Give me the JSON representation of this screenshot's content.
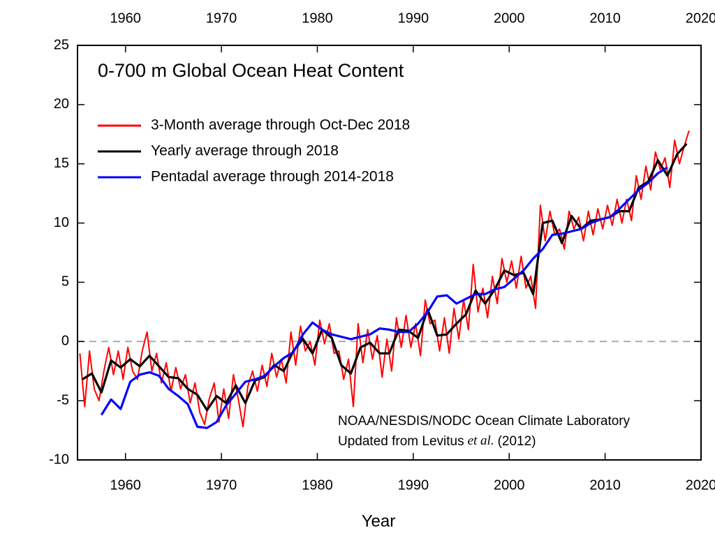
{
  "chart_data": {
    "type": "line",
    "title": "0-700 m Global Ocean Heat Content",
    "x_label": "Year",
    "annotation": "NOAA/NESDIS/NODC Ocean Climate Laboratory",
    "credit": [
      "Updated from Levitus",
      "et al.",
      "(2012)"
    ],
    "xlim": [
      1955,
      2020
    ],
    "xticks": [
      1960,
      1970,
      1980,
      1990,
      2000,
      2010,
      2020
    ],
    "ylim": [
      -10,
      25
    ],
    "yticks": [
      -10,
      -5,
      0,
      5,
      10,
      15,
      20,
      25
    ],
    "reference_line": 0,
    "legend": "upper left",
    "series": [
      {
        "name": "3-Month average through Oct-Dec 2018",
        "color": "#ff0000",
        "x": [
          1955.25,
          1955.75,
          1956.25,
          1956.75,
          1957.25,
          1957.75,
          1958.25,
          1958.75,
          1959.25,
          1959.75,
          1960.25,
          1960.75,
          1961.25,
          1961.75,
          1962.25,
          1962.75,
          1963.25,
          1963.75,
          1964.25,
          1964.75,
          1965.25,
          1965.75,
          1966.25,
          1966.75,
          1967.25,
          1967.75,
          1968.25,
          1968.75,
          1969.25,
          1969.75,
          1970.25,
          1970.75,
          1971.25,
          1971.75,
          1972.25,
          1972.75,
          1973.25,
          1973.75,
          1974.25,
          1974.75,
          1975.25,
          1975.75,
          1976.25,
          1976.75,
          1977.25,
          1977.75,
          1978.25,
          1978.75,
          1979.25,
          1979.75,
          1980.25,
          1980.75,
          1981.25,
          1981.75,
          1982.25,
          1982.75,
          1983.25,
          1983.75,
          1984.25,
          1984.75,
          1985.25,
          1985.75,
          1986.25,
          1986.75,
          1987.25,
          1987.75,
          1988.25,
          1988.75,
          1989.25,
          1989.75,
          1990.25,
          1990.75,
          1991.25,
          1991.75,
          1992.25,
          1992.75,
          1993.25,
          1993.75,
          1994.25,
          1994.75,
          1995.25,
          1995.75,
          1996.25,
          1996.75,
          1997.25,
          1997.75,
          1998.25,
          1998.75,
          1999.25,
          1999.75,
          2000.25,
          2000.75,
          2001.25,
          2001.75,
          2002.25,
          2002.75,
          2003.25,
          2003.75,
          2004.25,
          2004.75,
          2005.25,
          2005.75,
          2006.25,
          2006.75,
          2007.25,
          2007.75,
          2008.25,
          2008.75,
          2009.25,
          2009.75,
          2010.25,
          2010.75,
          2011.25,
          2011.75,
          2012.25,
          2012.75,
          2013.25,
          2013.75,
          2014.25,
          2014.75,
          2015.25,
          2015.75,
          2016.25,
          2016.75,
          2017.25,
          2017.75,
          2018.25,
          2018.75
        ],
        "values": [
          -1.0,
          -5.5,
          -0.8,
          -4.0,
          -5.0,
          -2.5,
          -0.5,
          -2.8,
          -0.8,
          -3.2,
          -0.5,
          -2.5,
          -3.2,
          -0.8,
          0.8,
          -2.5,
          -1.0,
          -3.5,
          -1.8,
          -4.2,
          -2.2,
          -4.0,
          -2.8,
          -5.2,
          -3.5,
          -6.0,
          -7.0,
          -4.8,
          -3.5,
          -6.8,
          -4.0,
          -6.5,
          -2.8,
          -4.8,
          -7.2,
          -3.8,
          -2.5,
          -4.2,
          -2.0,
          -3.8,
          -1.0,
          -3.0,
          -1.5,
          -3.5,
          0.8,
          -2.0,
          1.3,
          -0.8,
          0.0,
          -2.0,
          1.8,
          -0.2,
          1.5,
          -1.0,
          -0.8,
          -3.2,
          -1.5,
          -5.5,
          1.5,
          -1.8,
          1.0,
          -1.5,
          0.5,
          -3.0,
          0.2,
          -2.5,
          2.0,
          -0.5,
          2.2,
          -0.5,
          1.5,
          -1.2,
          3.5,
          1.5,
          1.8,
          -0.8,
          2.0,
          -1.0,
          2.8,
          0.2,
          3.5,
          1.0,
          6.5,
          2.5,
          4.5,
          2.0,
          5.5,
          3.2,
          7.0,
          5.0,
          6.8,
          4.5,
          7.2,
          4.5,
          5.5,
          2.8,
          11.5,
          8.5,
          11.0,
          9.0,
          9.5,
          7.8,
          11.0,
          9.5,
          10.5,
          8.5,
          11.0,
          9.0,
          11.2,
          9.5,
          11.5,
          9.8,
          12.0,
          10.0,
          12.0,
          10.2,
          14.0,
          12.0,
          14.8,
          12.8,
          16.0,
          14.5,
          15.5,
          13.0,
          17.0,
          15.0,
          16.5,
          17.8
        ]
      },
      {
        "name": "Yearly average through 2018",
        "color": "#000000",
        "x": [
          1955.5,
          1956.5,
          1957.5,
          1958.5,
          1959.5,
          1960.5,
          1961.5,
          1962.5,
          1963.5,
          1964.5,
          1965.5,
          1966.5,
          1967.5,
          1968.5,
          1969.5,
          1970.5,
          1971.5,
          1972.5,
          1973.5,
          1974.5,
          1975.5,
          1976.5,
          1977.5,
          1978.5,
          1979.5,
          1980.5,
          1981.5,
          1982.5,
          1983.5,
          1984.5,
          1985.5,
          1986.5,
          1987.5,
          1988.5,
          1989.5,
          1990.5,
          1991.5,
          1992.5,
          1993.5,
          1994.5,
          1995.5,
          1996.5,
          1997.5,
          1998.5,
          1999.5,
          2000.5,
          2001.5,
          2002.5,
          2003.5,
          2004.5,
          2005.5,
          2006.5,
          2007.5,
          2008.5,
          2009.5,
          2010.5,
          2011.5,
          2012.5,
          2013.5,
          2014.5,
          2015.5,
          2016.5,
          2017.5,
          2018.5
        ],
        "values": [
          -3.2,
          -2.7,
          -4.3,
          -1.6,
          -2.2,
          -1.5,
          -2.1,
          -1.2,
          -2.1,
          -3.0,
          -3.1,
          -4.0,
          -4.5,
          -5.8,
          -4.6,
          -5.2,
          -3.7,
          -5.2,
          -3.3,
          -3.0,
          -2.0,
          -2.5,
          -0.8,
          0.2,
          -1.0,
          1.0,
          0.3,
          -2.0,
          -2.7,
          -0.5,
          -0.1,
          -1.0,
          -1.0,
          1.0,
          0.9,
          0.3,
          2.7,
          0.5,
          0.6,
          1.5,
          2.3,
          4.3,
          3.2,
          4.4,
          6.0,
          5.6,
          5.8,
          4.0,
          10.0,
          10.2,
          8.3,
          10.6,
          9.5,
          10.2,
          10.3,
          10.5,
          11.0,
          11.0,
          13.0,
          13.5,
          15.3,
          14.0,
          15.8,
          16.7
        ]
      },
      {
        "name": "Pentadal average through 2014-2018",
        "color": "#0000ff",
        "x": [
          1957.5,
          1958.5,
          1959.5,
          1960.5,
          1961.5,
          1962.5,
          1963.5,
          1964.5,
          1965.5,
          1966.5,
          1967.5,
          1968.5,
          1969.5,
          1970.5,
          1971.5,
          1972.5,
          1973.5,
          1974.5,
          1975.5,
          1976.5,
          1977.5,
          1978.5,
          1979.5,
          1980.5,
          1981.5,
          1982.5,
          1983.5,
          1984.5,
          1985.5,
          1986.5,
          1987.5,
          1988.5,
          1989.5,
          1990.5,
          1991.5,
          1992.5,
          1993.5,
          1994.5,
          1995.5,
          1996.5,
          1997.5,
          1998.5,
          1999.5,
          2000.5,
          2001.5,
          2002.5,
          2003.5,
          2004.5,
          2005.5,
          2006.5,
          2007.5,
          2008.5,
          2009.5,
          2010.5,
          2011.5,
          2012.5,
          2013.5,
          2014.5,
          2015.5,
          2016.5
        ],
        "values": [
          -6.2,
          -4.9,
          -5.7,
          -3.4,
          -2.8,
          -2.6,
          -2.9,
          -4.0,
          -4.6,
          -5.3,
          -7.2,
          -7.3,
          -6.8,
          -5.4,
          -4.4,
          -3.4,
          -3.2,
          -2.9,
          -2.1,
          -1.4,
          -0.9,
          0.6,
          1.6,
          1.0,
          0.6,
          0.4,
          0.2,
          0.4,
          0.6,
          1.1,
          1.0,
          0.8,
          0.8,
          1.5,
          2.5,
          3.8,
          3.9,
          3.2,
          3.6,
          4.0,
          4.0,
          4.4,
          4.6,
          5.3,
          6.0,
          7.0,
          7.8,
          9.0,
          9.1,
          9.3,
          9.5,
          10.0,
          10.3,
          10.5,
          11.2,
          12.0,
          12.8,
          13.4,
          14.2,
          14.7
        ]
      }
    ]
  }
}
